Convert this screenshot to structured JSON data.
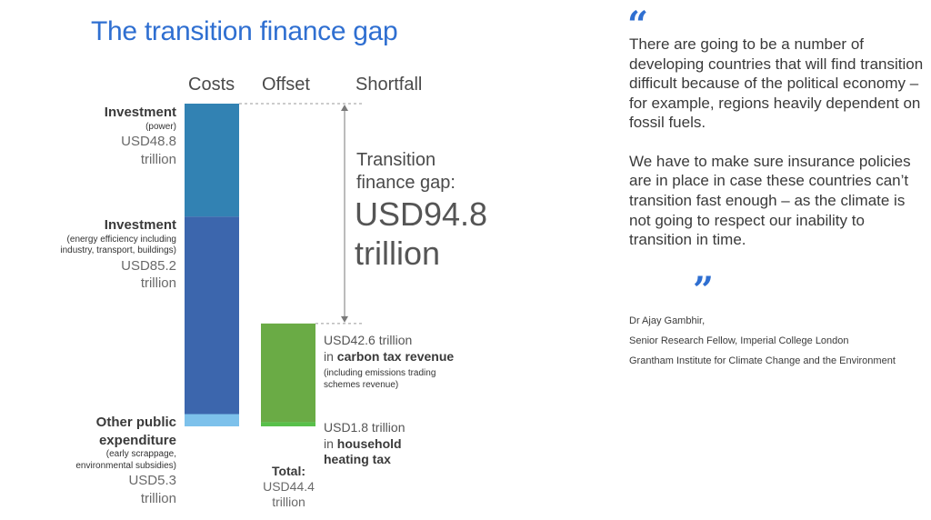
{
  "title": "The transition finance gap",
  "chart_data": {
    "type": "bar",
    "columns": [
      "Costs",
      "Offset",
      "Shortfall"
    ],
    "costs": [
      {
        "name": "Investment",
        "detail": "(power)",
        "value": 48.8,
        "value_label": "USD48.8",
        "unit": "trillion",
        "color": "#3282b3"
      },
      {
        "name": "Investment",
        "detail": "(energy efficiency including industry, transport, buildings)",
        "value": 85.2,
        "value_label": "USD85.2",
        "unit": "trillion",
        "color": "#3c66ad"
      },
      {
        "name": "Other public expenditure",
        "detail": "(early scrappage, environmental subsidies)",
        "value": 5.3,
        "value_label": "USD5.3",
        "unit": "trillion",
        "color": "#7dc1eb"
      }
    ],
    "offsets": [
      {
        "value": 42.6,
        "value_label": "USD42.6 trillion",
        "prefix": "in",
        "name": "carbon tax revenue",
        "detail": "(including emissions trading schemes revenue)",
        "color": "#6aab45"
      },
      {
        "value": 1.8,
        "value_label": "USD1.8 trillion",
        "prefix": "in",
        "name": "household heating tax",
        "color": "#58c04a"
      }
    ],
    "offset_total": {
      "label": "Total:",
      "value": 44.4,
      "value_label": "USD44.4",
      "unit": "trillion"
    },
    "shortfall": {
      "label_line1": "Transition",
      "label_line2": "finance gap:",
      "value": 94.8,
      "value_label": "USD94.8",
      "unit": "trillion"
    }
  },
  "quote": {
    "open_mark": "“",
    "close_mark": "”",
    "paragraph1": "There are going to be a number of developing countries that will find transition difficult because of the political economy – for example, regions heavily dependent on fossil fuels.",
    "paragraph2": "We have to make sure insurance policies are in place in case these countries can’t transition fast enough – as the climate is not going to respect our inability to transition in time."
  },
  "attribution": {
    "name": "Dr Ajay Gambhir,",
    "role": "Senior Research Fellow, Imperial College London",
    "org": "Grantham Institute for Climate Change and the Environment"
  }
}
